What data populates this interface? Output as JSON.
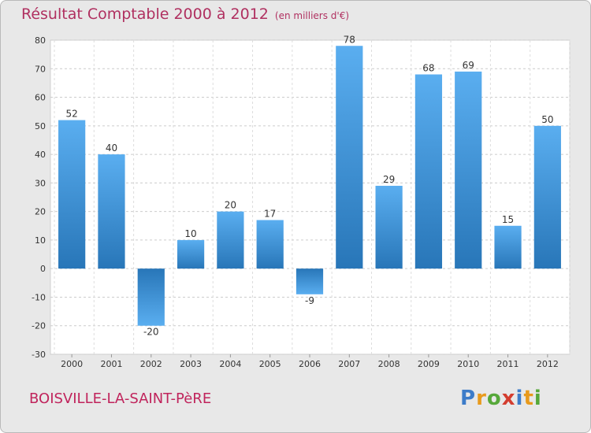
{
  "chart_data": {
    "type": "bar",
    "title": "Résultat Comptable 2000 à 2012",
    "subtitle": "(en milliers d'€)",
    "categories": [
      "2000",
      "2001",
      "2002",
      "2003",
      "2004",
      "2005",
      "2006",
      "2007",
      "2008",
      "2009",
      "2010",
      "2011",
      "2012"
    ],
    "values": [
      52,
      40,
      -20,
      10,
      20,
      17,
      -9,
      78,
      29,
      68,
      69,
      15,
      50
    ],
    "ylim": [
      -30,
      80
    ],
    "yticks": [
      80,
      70,
      60,
      50,
      40,
      30,
      20,
      10,
      0,
      -10,
      -20,
      -30
    ],
    "grid": true,
    "xlabel": "",
    "ylabel": ""
  },
  "footer": {
    "commune": "BOISVILLE-LA-SAINT-PèRE",
    "logo": "Proxiti"
  },
  "colors": {
    "bar_top": "#5aaef0",
    "bar_bottom": "#2876b8",
    "title": "#b03060",
    "commune": "#c0245c"
  }
}
